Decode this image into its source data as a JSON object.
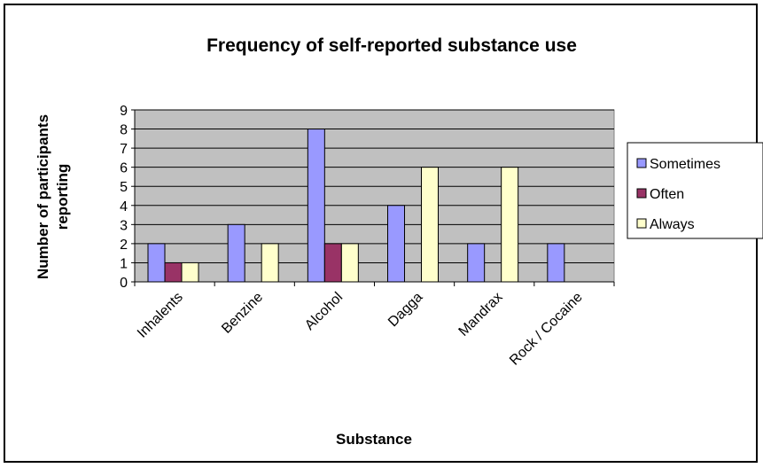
{
  "chart_data": {
    "type": "bar",
    "title": "Frequency of self-reported substance use",
    "xlabel": "Substance",
    "ylabel": [
      "Number of participants",
      "reporting"
    ],
    "categories": [
      "Inhalents",
      "Benzine",
      "Alcohol",
      "Dagga",
      "Mandrax",
      "Rock / Cocaine"
    ],
    "series": [
      {
        "name": "Sometimes",
        "values": [
          2,
          3,
          8,
          4,
          2,
          2
        ],
        "color": "#9999ff"
      },
      {
        "name": "Often",
        "values": [
          1,
          0,
          2,
          0,
          0,
          0
        ],
        "color": "#993366"
      },
      {
        "name": "Always",
        "values": [
          1,
          2,
          2,
          6,
          6,
          0
        ],
        "color": "#ffffcc"
      }
    ],
    "ylim": [
      0,
      9
    ],
    "yticks": [
      "0",
      "1",
      "2",
      "3",
      "4",
      "5",
      "6",
      "7",
      "8",
      "9"
    ],
    "grid": true,
    "legend_position": "right",
    "plot_background": "#c0c0c0"
  }
}
